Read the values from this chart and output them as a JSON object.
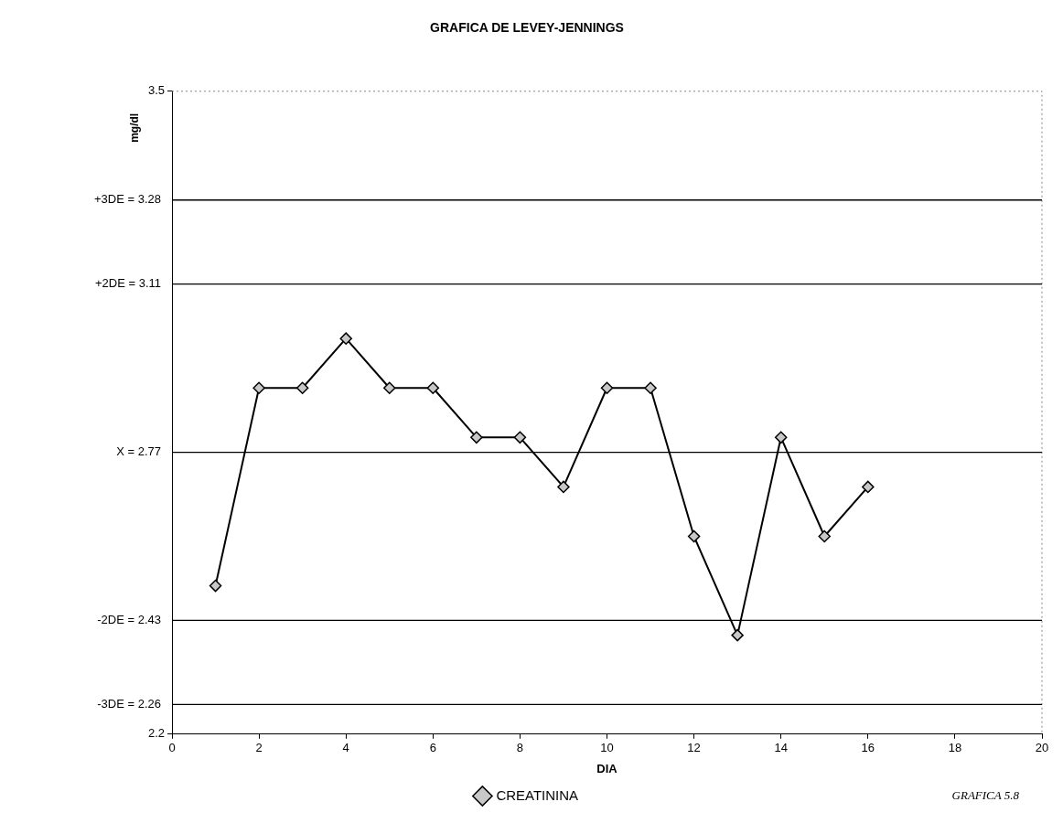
{
  "chart_data": {
    "type": "line",
    "title": "GRAFICA DE LEVEY-JENNINGS",
    "xlabel": "DIA",
    "ylabel": "mg/dl",
    "x": [
      1,
      2,
      3,
      4,
      5,
      6,
      7,
      8,
      9,
      10,
      11,
      12,
      13,
      14,
      15,
      16
    ],
    "series": [
      {
        "name": "CREATININA",
        "color": "#000000",
        "values": [
          2.5,
          2.9,
          2.9,
          3.0,
          2.9,
          2.9,
          2.8,
          2.8,
          2.7,
          2.9,
          2.9,
          2.6,
          2.4,
          2.8,
          2.6,
          2.7
        ]
      }
    ],
    "xlim": [
      0,
      20
    ],
    "xticks": [
      0,
      2,
      4,
      6,
      8,
      10,
      12,
      14,
      16,
      18,
      20
    ],
    "ylim": [
      2.2,
      3.5
    ],
    "yticks": [
      2.2,
      3.5
    ],
    "ref_lines": [
      {
        "axis": "y",
        "value": 3.28,
        "label": "+3DE = 3.28",
        "color": "#000000"
      },
      {
        "axis": "y",
        "value": 3.11,
        "label": "+2DE = 3.11",
        "color": "#000000"
      },
      {
        "axis": "y",
        "value": 2.77,
        "label": "X = 2.77",
        "color": "#000000"
      },
      {
        "axis": "y",
        "value": 2.43,
        "label": "-2DE = 2.43",
        "color": "#000000"
      },
      {
        "axis": "y",
        "value": 2.26,
        "label": "-3DE = 2.26",
        "color": "#000000"
      }
    ],
    "annotations": [
      "GRAFICA 5.8"
    ],
    "grid": false,
    "legend": "bottom",
    "marker": "diamond",
    "line_style": "solid"
  }
}
